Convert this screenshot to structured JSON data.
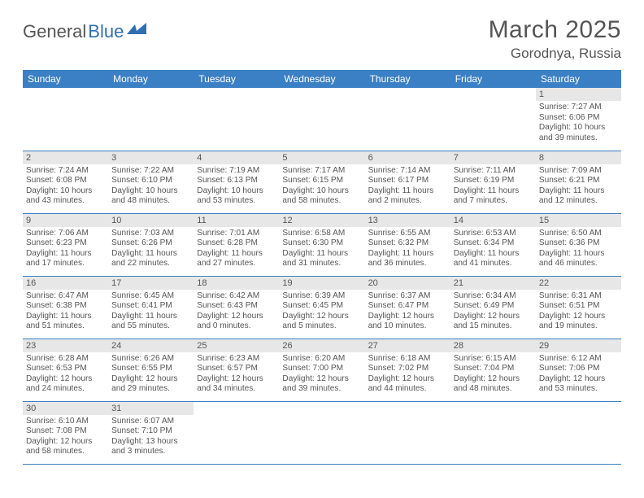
{
  "logo": {
    "text1": "General",
    "text2": "Blue"
  },
  "title": "March 2025",
  "location": "Gorodnya, Russia",
  "colors": {
    "header_bg": "#3b7fc4",
    "header_fg": "#ffffff",
    "grid_line": "#3b7fc4",
    "daynum_bg": "#e7e7e7",
    "text": "#555555",
    "logo_accent": "#2f6fb0"
  },
  "weekdays": [
    "Sunday",
    "Monday",
    "Tuesday",
    "Wednesday",
    "Thursday",
    "Friday",
    "Saturday"
  ],
  "weeks": [
    [
      {
        "n": "",
        "sunrise": "",
        "sunset": "",
        "day1": "",
        "day2": ""
      },
      {
        "n": "",
        "sunrise": "",
        "sunset": "",
        "day1": "",
        "day2": ""
      },
      {
        "n": "",
        "sunrise": "",
        "sunset": "",
        "day1": "",
        "day2": ""
      },
      {
        "n": "",
        "sunrise": "",
        "sunset": "",
        "day1": "",
        "day2": ""
      },
      {
        "n": "",
        "sunrise": "",
        "sunset": "",
        "day1": "",
        "day2": ""
      },
      {
        "n": "",
        "sunrise": "",
        "sunset": "",
        "day1": "",
        "day2": ""
      },
      {
        "n": "1",
        "sunrise": "Sunrise: 7:27 AM",
        "sunset": "Sunset: 6:06 PM",
        "day1": "Daylight: 10 hours",
        "day2": "and 39 minutes."
      }
    ],
    [
      {
        "n": "2",
        "sunrise": "Sunrise: 7:24 AM",
        "sunset": "Sunset: 6:08 PM",
        "day1": "Daylight: 10 hours",
        "day2": "and 43 minutes."
      },
      {
        "n": "3",
        "sunrise": "Sunrise: 7:22 AM",
        "sunset": "Sunset: 6:10 PM",
        "day1": "Daylight: 10 hours",
        "day2": "and 48 minutes."
      },
      {
        "n": "4",
        "sunrise": "Sunrise: 7:19 AM",
        "sunset": "Sunset: 6:13 PM",
        "day1": "Daylight: 10 hours",
        "day2": "and 53 minutes."
      },
      {
        "n": "5",
        "sunrise": "Sunrise: 7:17 AM",
        "sunset": "Sunset: 6:15 PM",
        "day1": "Daylight: 10 hours",
        "day2": "and 58 minutes."
      },
      {
        "n": "6",
        "sunrise": "Sunrise: 7:14 AM",
        "sunset": "Sunset: 6:17 PM",
        "day1": "Daylight: 11 hours",
        "day2": "and 2 minutes."
      },
      {
        "n": "7",
        "sunrise": "Sunrise: 7:11 AM",
        "sunset": "Sunset: 6:19 PM",
        "day1": "Daylight: 11 hours",
        "day2": "and 7 minutes."
      },
      {
        "n": "8",
        "sunrise": "Sunrise: 7:09 AM",
        "sunset": "Sunset: 6:21 PM",
        "day1": "Daylight: 11 hours",
        "day2": "and 12 minutes."
      }
    ],
    [
      {
        "n": "9",
        "sunrise": "Sunrise: 7:06 AM",
        "sunset": "Sunset: 6:23 PM",
        "day1": "Daylight: 11 hours",
        "day2": "and 17 minutes."
      },
      {
        "n": "10",
        "sunrise": "Sunrise: 7:03 AM",
        "sunset": "Sunset: 6:26 PM",
        "day1": "Daylight: 11 hours",
        "day2": "and 22 minutes."
      },
      {
        "n": "11",
        "sunrise": "Sunrise: 7:01 AM",
        "sunset": "Sunset: 6:28 PM",
        "day1": "Daylight: 11 hours",
        "day2": "and 27 minutes."
      },
      {
        "n": "12",
        "sunrise": "Sunrise: 6:58 AM",
        "sunset": "Sunset: 6:30 PM",
        "day1": "Daylight: 11 hours",
        "day2": "and 31 minutes."
      },
      {
        "n": "13",
        "sunrise": "Sunrise: 6:55 AM",
        "sunset": "Sunset: 6:32 PM",
        "day1": "Daylight: 11 hours",
        "day2": "and 36 minutes."
      },
      {
        "n": "14",
        "sunrise": "Sunrise: 6:53 AM",
        "sunset": "Sunset: 6:34 PM",
        "day1": "Daylight: 11 hours",
        "day2": "and 41 minutes."
      },
      {
        "n": "15",
        "sunrise": "Sunrise: 6:50 AM",
        "sunset": "Sunset: 6:36 PM",
        "day1": "Daylight: 11 hours",
        "day2": "and 46 minutes."
      }
    ],
    [
      {
        "n": "16",
        "sunrise": "Sunrise: 6:47 AM",
        "sunset": "Sunset: 6:38 PM",
        "day1": "Daylight: 11 hours",
        "day2": "and 51 minutes."
      },
      {
        "n": "17",
        "sunrise": "Sunrise: 6:45 AM",
        "sunset": "Sunset: 6:41 PM",
        "day1": "Daylight: 11 hours",
        "day2": "and 55 minutes."
      },
      {
        "n": "18",
        "sunrise": "Sunrise: 6:42 AM",
        "sunset": "Sunset: 6:43 PM",
        "day1": "Daylight: 12 hours",
        "day2": "and 0 minutes."
      },
      {
        "n": "19",
        "sunrise": "Sunrise: 6:39 AM",
        "sunset": "Sunset: 6:45 PM",
        "day1": "Daylight: 12 hours",
        "day2": "and 5 minutes."
      },
      {
        "n": "20",
        "sunrise": "Sunrise: 6:37 AM",
        "sunset": "Sunset: 6:47 PM",
        "day1": "Daylight: 12 hours",
        "day2": "and 10 minutes."
      },
      {
        "n": "21",
        "sunrise": "Sunrise: 6:34 AM",
        "sunset": "Sunset: 6:49 PM",
        "day1": "Daylight: 12 hours",
        "day2": "and 15 minutes."
      },
      {
        "n": "22",
        "sunrise": "Sunrise: 6:31 AM",
        "sunset": "Sunset: 6:51 PM",
        "day1": "Daylight: 12 hours",
        "day2": "and 19 minutes."
      }
    ],
    [
      {
        "n": "23",
        "sunrise": "Sunrise: 6:28 AM",
        "sunset": "Sunset: 6:53 PM",
        "day1": "Daylight: 12 hours",
        "day2": "and 24 minutes."
      },
      {
        "n": "24",
        "sunrise": "Sunrise: 6:26 AM",
        "sunset": "Sunset: 6:55 PM",
        "day1": "Daylight: 12 hours",
        "day2": "and 29 minutes."
      },
      {
        "n": "25",
        "sunrise": "Sunrise: 6:23 AM",
        "sunset": "Sunset: 6:57 PM",
        "day1": "Daylight: 12 hours",
        "day2": "and 34 minutes."
      },
      {
        "n": "26",
        "sunrise": "Sunrise: 6:20 AM",
        "sunset": "Sunset: 7:00 PM",
        "day1": "Daylight: 12 hours",
        "day2": "and 39 minutes."
      },
      {
        "n": "27",
        "sunrise": "Sunrise: 6:18 AM",
        "sunset": "Sunset: 7:02 PM",
        "day1": "Daylight: 12 hours",
        "day2": "and 44 minutes."
      },
      {
        "n": "28",
        "sunrise": "Sunrise: 6:15 AM",
        "sunset": "Sunset: 7:04 PM",
        "day1": "Daylight: 12 hours",
        "day2": "and 48 minutes."
      },
      {
        "n": "29",
        "sunrise": "Sunrise: 6:12 AM",
        "sunset": "Sunset: 7:06 PM",
        "day1": "Daylight: 12 hours",
        "day2": "and 53 minutes."
      }
    ],
    [
      {
        "n": "30",
        "sunrise": "Sunrise: 6:10 AM",
        "sunset": "Sunset: 7:08 PM",
        "day1": "Daylight: 12 hours",
        "day2": "and 58 minutes."
      },
      {
        "n": "31",
        "sunrise": "Sunrise: 6:07 AM",
        "sunset": "Sunset: 7:10 PM",
        "day1": "Daylight: 13 hours",
        "day2": "and 3 minutes."
      },
      {
        "n": "",
        "sunrise": "",
        "sunset": "",
        "day1": "",
        "day2": ""
      },
      {
        "n": "",
        "sunrise": "",
        "sunset": "",
        "day1": "",
        "day2": ""
      },
      {
        "n": "",
        "sunrise": "",
        "sunset": "",
        "day1": "",
        "day2": ""
      },
      {
        "n": "",
        "sunrise": "",
        "sunset": "",
        "day1": "",
        "day2": ""
      },
      {
        "n": "",
        "sunrise": "",
        "sunset": "",
        "day1": "",
        "day2": ""
      }
    ]
  ]
}
